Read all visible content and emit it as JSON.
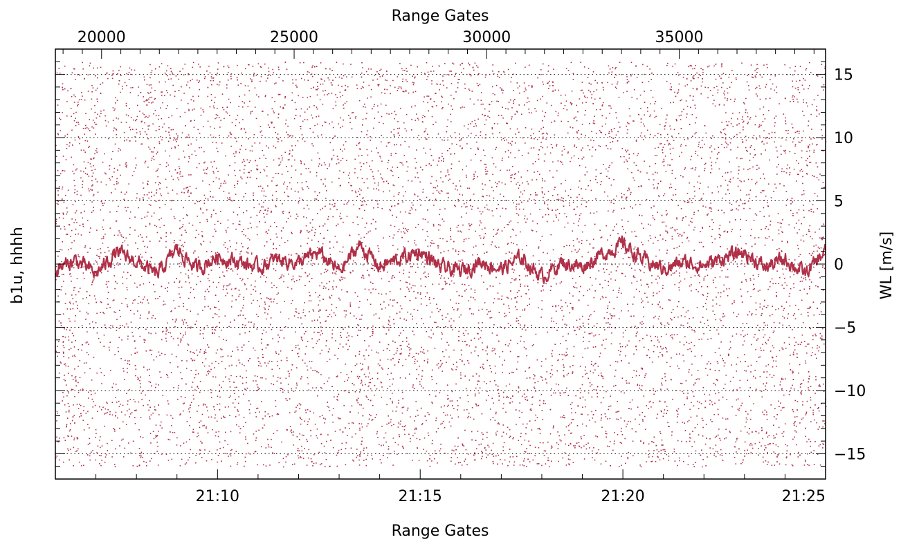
{
  "chart_data": {
    "type": "scatter",
    "title": "",
    "top_xlabel": "Range Gates",
    "bottom_xlabel": "Range Gates",
    "left_ylabel": "b1u, hhhh",
    "right_ylabel": "WL [m/s]",
    "top_axis": {
      "range": [
        18800,
        38800
      ],
      "ticks": [
        20000,
        25000,
        30000,
        35000
      ],
      "tick_labels": [
        "20000",
        "25000",
        "30000",
        "35000"
      ]
    },
    "bottom_axis": {
      "range": [
        "21:06:00",
        "21:25:00"
      ],
      "ticks": [
        "21:10",
        "21:15",
        "21:20",
        "21:25"
      ],
      "tick_labels": [
        "21:10",
        "21:15",
        "21:20",
        "21:25"
      ]
    },
    "y_axis": {
      "range": [
        -17,
        17
      ],
      "ticks": [
        -15,
        -10,
        -5,
        0,
        5,
        10,
        15
      ],
      "tick_labels": [
        "−15",
        "−10",
        "−5",
        "0",
        "5",
        "10",
        "15"
      ]
    },
    "grid": "dotted horizontal at every 5 m/s",
    "colors": {
      "series": "#b03048",
      "axes": "#000000",
      "grid": "#000000"
    },
    "series": [
      {
        "style": "dots",
        "description_values": "noise points spread uniformly in y between -16 and 16 over the full time range"
      },
      {
        "style": "line",
        "x": [
          "21:06:00",
          "21:06:30",
          "21:07:00",
          "21:07:30",
          "21:08:00",
          "21:08:30",
          "21:09:00",
          "21:09:30",
          "21:10:00",
          "21:10:30",
          "21:11:00",
          "21:11:30",
          "21:12:00",
          "21:12:30",
          "21:13:00",
          "21:13:30",
          "21:14:00",
          "21:14:30",
          "21:15:00",
          "21:15:30",
          "21:16:00",
          "21:16:30",
          "21:17:00",
          "21:17:30",
          "21:18:00",
          "21:18:30",
          "21:19:00",
          "21:19:30",
          "21:20:00",
          "21:20:30",
          "21:21:00",
          "21:21:30",
          "21:22:00",
          "21:22:30",
          "21:23:00",
          "21:23:30",
          "21:24:00",
          "21:24:30",
          "21:25:00"
        ],
        "y": [
          -0.5,
          0.3,
          -0.8,
          0.9,
          0.2,
          -0.9,
          1.2,
          -0.4,
          0.6,
          0.2,
          -0.3,
          0.4,
          0.1,
          0.9,
          -0.6,
          1.5,
          -0.2,
          0.4,
          1.0,
          -0.3,
          -0.6,
          0.2,
          -0.4,
          0.5,
          -1.0,
          0.1,
          -0.2,
          0.8,
          1.6,
          0.3,
          -0.4,
          0.1,
          -0.1,
          0.5,
          0.9,
          -0.3,
          0.4,
          -0.8,
          1.0
        ]
      }
    ]
  }
}
